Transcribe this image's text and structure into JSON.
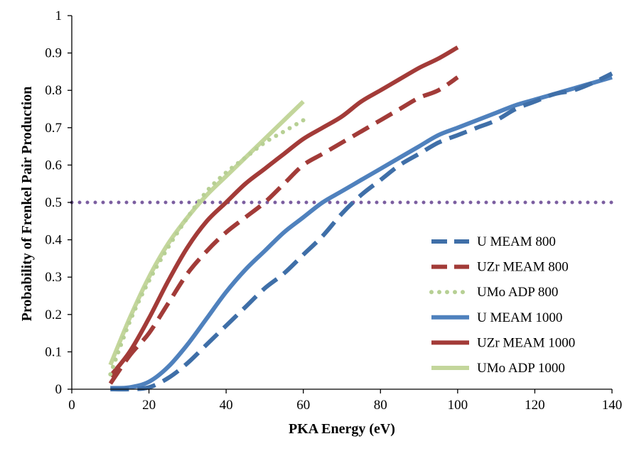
{
  "chart_data": {
    "type": "line",
    "title": "",
    "xlabel": "PKA Energy (eV)",
    "ylabel": "Probability of Frenkel Pair Production",
    "xlim": [
      0,
      140
    ],
    "ylim": [
      0,
      1
    ],
    "xticks": [
      0,
      20,
      40,
      60,
      80,
      100,
      120,
      140
    ],
    "yticks": [
      0,
      0.1,
      0.2,
      0.3,
      0.4,
      0.5,
      0.6,
      0.7,
      0.8,
      0.9,
      1
    ],
    "ytick_labels": [
      "0",
      "0.1",
      "0.2",
      "0.3",
      "0.4",
      "0.5",
      "0.6",
      "0.7",
      "0.8",
      "0.9",
      "1"
    ],
    "grid": false,
    "legend_position": "right",
    "reference_line": {
      "y": 0.5,
      "color": "#7B5EA0",
      "style": "dotted"
    },
    "series": [
      {
        "name": "U MEAM 800",
        "color": "#3F6FA8",
        "style": "dashed",
        "x": [
          10,
          15,
          20,
          25,
          30,
          35,
          40,
          45,
          50,
          55,
          60,
          65,
          70,
          75,
          80,
          85,
          90,
          95,
          100,
          105,
          110,
          115,
          120,
          125,
          130,
          135,
          140
        ],
        "y": [
          0.0,
          0.0,
          0.005,
          0.03,
          0.07,
          0.12,
          0.17,
          0.22,
          0.27,
          0.31,
          0.36,
          0.41,
          0.47,
          0.52,
          0.56,
          0.6,
          0.63,
          0.66,
          0.68,
          0.7,
          0.72,
          0.75,
          0.77,
          0.79,
          0.8,
          0.82,
          0.845
        ]
      },
      {
        "name": "UZr MEAM 800",
        "color": "#A23B38",
        "style": "dashed",
        "x": [
          10,
          15,
          20,
          25,
          30,
          35,
          40,
          45,
          50,
          55,
          60,
          65,
          70,
          75,
          80,
          85,
          90,
          95,
          100
        ],
        "y": [
          0.015,
          0.09,
          0.15,
          0.23,
          0.31,
          0.37,
          0.42,
          0.46,
          0.5,
          0.55,
          0.6,
          0.63,
          0.66,
          0.69,
          0.72,
          0.75,
          0.78,
          0.8,
          0.835
        ]
      },
      {
        "name": "UMo ADP 800",
        "color": "#B7D094",
        "style": "dotted",
        "x": [
          10,
          15,
          20,
          25,
          30,
          35,
          40,
          45,
          50,
          55,
          60
        ],
        "y": [
          0.04,
          0.18,
          0.29,
          0.38,
          0.46,
          0.53,
          0.58,
          0.62,
          0.66,
          0.69,
          0.72
        ]
      },
      {
        "name": "U MEAM 1000",
        "color": "#4F81BD",
        "style": "solid",
        "x": [
          10,
          15,
          20,
          25,
          30,
          35,
          40,
          45,
          50,
          55,
          60,
          65,
          70,
          75,
          80,
          85,
          90,
          95,
          100,
          105,
          110,
          115,
          120,
          125,
          130,
          135,
          140
        ],
        "y": [
          0.003,
          0.005,
          0.02,
          0.06,
          0.12,
          0.19,
          0.26,
          0.32,
          0.37,
          0.42,
          0.46,
          0.5,
          0.53,
          0.56,
          0.59,
          0.62,
          0.65,
          0.68,
          0.7,
          0.72,
          0.74,
          0.76,
          0.775,
          0.79,
          0.805,
          0.82,
          0.835
        ]
      },
      {
        "name": "UZr MEAM 1000",
        "color": "#A33B38",
        "style": "solid",
        "x": [
          10,
          15,
          20,
          25,
          30,
          35,
          40,
          45,
          50,
          55,
          60,
          65,
          70,
          75,
          80,
          85,
          90,
          95,
          100
        ],
        "y": [
          0.035,
          0.1,
          0.19,
          0.29,
          0.38,
          0.45,
          0.5,
          0.55,
          0.59,
          0.63,
          0.67,
          0.7,
          0.73,
          0.77,
          0.8,
          0.83,
          0.86,
          0.885,
          0.915
        ]
      },
      {
        "name": "UMo ADP 1000",
        "color": "#C3D69B",
        "style": "solid",
        "x": [
          10,
          15,
          20,
          25,
          30,
          35,
          40,
          45,
          50,
          55,
          60
        ],
        "y": [
          0.065,
          0.19,
          0.3,
          0.39,
          0.46,
          0.52,
          0.57,
          0.62,
          0.67,
          0.72,
          0.77
        ]
      }
    ]
  }
}
